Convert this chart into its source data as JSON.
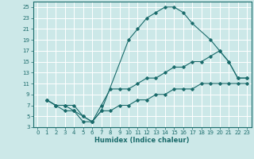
{
  "title": "",
  "xlabel": "Humidex (Indice chaleur)",
  "ylabel": "",
  "background_color": "#cce8e8",
  "grid_color": "#ffffff",
  "line_color": "#1a6b6b",
  "xlim": [
    -0.5,
    23.5
  ],
  "ylim": [
    3,
    26
  ],
  "xticks": [
    0,
    1,
    2,
    3,
    4,
    5,
    6,
    7,
    8,
    9,
    10,
    11,
    12,
    13,
    14,
    15,
    16,
    17,
    18,
    19,
    20,
    21,
    22,
    23
  ],
  "yticks": [
    3,
    5,
    7,
    9,
    11,
    13,
    15,
    17,
    19,
    21,
    23,
    25
  ],
  "line1_x": [
    1,
    2,
    3,
    4,
    5,
    6,
    7,
    10,
    11,
    12,
    13,
    14,
    15,
    16,
    17,
    19,
    20,
    21,
    22,
    23
  ],
  "line1_y": [
    8,
    7,
    7,
    6,
    4,
    4,
    6,
    19,
    21,
    23,
    24,
    25,
    25,
    24,
    22,
    19,
    17,
    15,
    12,
    12
  ],
  "line2_x": [
    1,
    2,
    3,
    4,
    5,
    6,
    7,
    8,
    9,
    10,
    11,
    12,
    13,
    14,
    15,
    16,
    17,
    18,
    19,
    20,
    21,
    22,
    23
  ],
  "line2_y": [
    8,
    7,
    7,
    7,
    5,
    4,
    7,
    10,
    10,
    10,
    11,
    12,
    12,
    13,
    14,
    14,
    15,
    15,
    16,
    17,
    15,
    12,
    12
  ],
  "line3_x": [
    1,
    2,
    3,
    4,
    5,
    6,
    7,
    8,
    9,
    10,
    11,
    12,
    13,
    14,
    15,
    16,
    17,
    18,
    19,
    20,
    21,
    22,
    23
  ],
  "line3_y": [
    8,
    7,
    6,
    6,
    5,
    4,
    6,
    6,
    7,
    7,
    8,
    8,
    9,
    9,
    10,
    10,
    10,
    11,
    11,
    11,
    11,
    11,
    11
  ],
  "tick_fontsize": 5,
  "xlabel_fontsize": 6,
  "marker": "D",
  "markersize": 1.8,
  "linewidth": 0.8
}
